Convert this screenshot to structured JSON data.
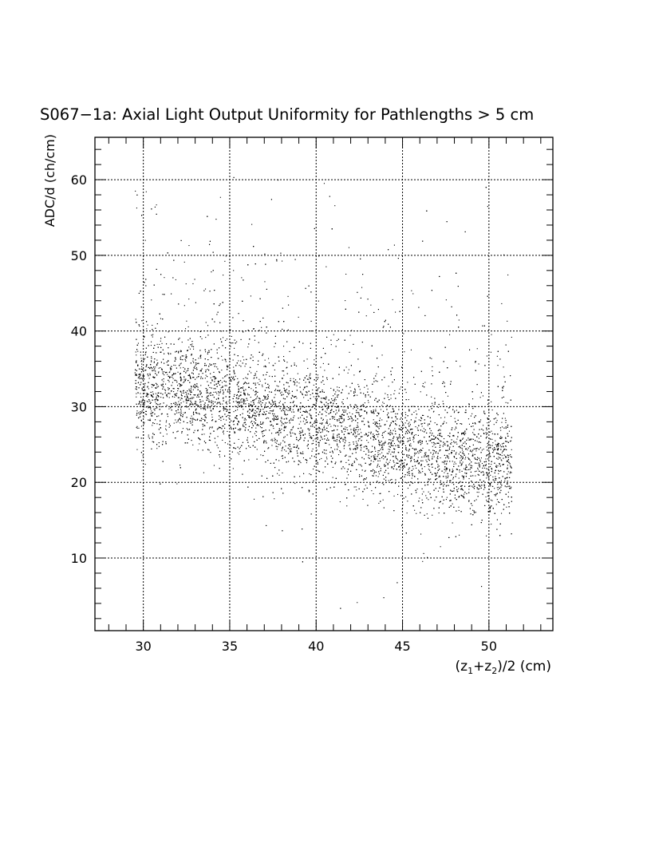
{
  "chart_data": {
    "type": "scatter",
    "title": "S067−1a: Axial Light Output Uniformity for Pathlengths > 5 cm",
    "xlabel": "(z1+z2)/2 (cm)",
    "xlabel_parts": {
      "open": "(z",
      "sub1": "1",
      "plus": "+z",
      "sub2": "2",
      "close": ")/2 (cm)"
    },
    "ylabel": "ADC/d (ch/cm)",
    "xlim": [
      27.2,
      53.7
    ],
    "ylim": [
      0.4,
      65.6
    ],
    "xticks": [
      30,
      35,
      40,
      45,
      50
    ],
    "yticks": [
      10,
      20,
      30,
      40,
      50,
      60
    ],
    "grid": true,
    "marker_color": "#000000",
    "x_data_range": [
      29.5,
      51.3
    ],
    "trend": {
      "x": [
        29.5,
        32,
        34,
        36,
        38,
        40,
        42,
        44,
        46,
        48,
        50,
        51.3
      ],
      "y": [
        31,
        31,
        30,
        29.5,
        28,
        27,
        25.5,
        24,
        22.5,
        21.5,
        21,
        22
      ]
    }
  }
}
